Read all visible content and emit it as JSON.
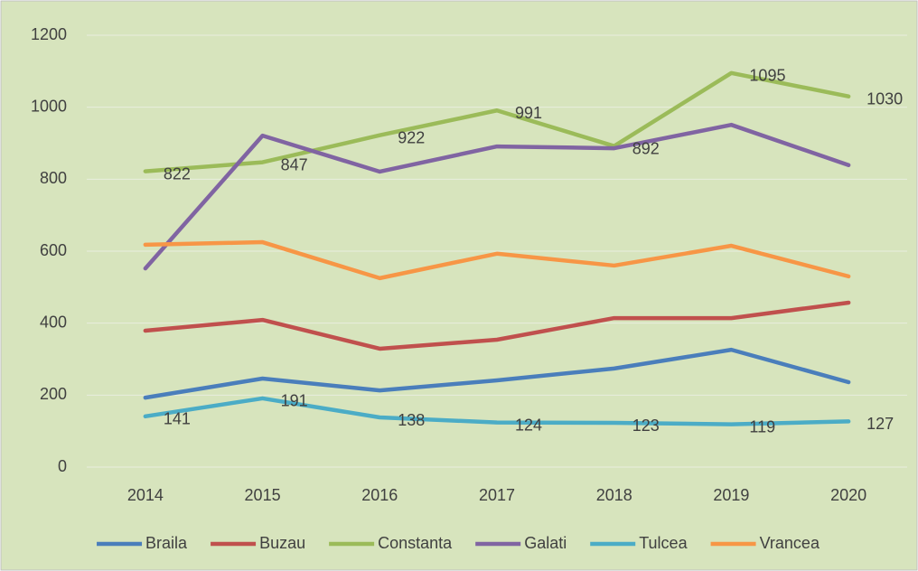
{
  "chart_data": {
    "type": "line",
    "categories": [
      "2014",
      "2015",
      "2016",
      "2017",
      "2018",
      "2019",
      "2020"
    ],
    "series": [
      {
        "name": "Braila",
        "color": "#4a7ebb",
        "values": [
          193,
          246,
          213,
          241,
          274,
          326,
          236
        ]
      },
      {
        "name": "Buzau",
        "color": "#c0504d",
        "values": [
          379,
          409,
          329,
          354,
          414,
          414,
          457
        ]
      },
      {
        "name": "Constanta",
        "color": "#9bbb59",
        "values": [
          822,
          847,
          922,
          991,
          892,
          1095,
          1030
        ],
        "data_labels": true
      },
      {
        "name": "Galati",
        "color": "#8064a2",
        "values": [
          552,
          921,
          821,
          891,
          886,
          951,
          839
        ]
      },
      {
        "name": "Tulcea",
        "color": "#4bacc6",
        "values": [
          141,
          191,
          138,
          124,
          123,
          119,
          127
        ],
        "data_labels": true
      },
      {
        "name": "Vrancea",
        "color": "#f79646",
        "values": [
          618,
          625,
          525,
          593,
          560,
          615,
          530
        ]
      }
    ],
    "ylim": [
      0,
      1200
    ],
    "yticks": [
      0,
      200,
      400,
      600,
      800,
      1000,
      1200
    ],
    "grid": true,
    "legend": "bottom"
  }
}
